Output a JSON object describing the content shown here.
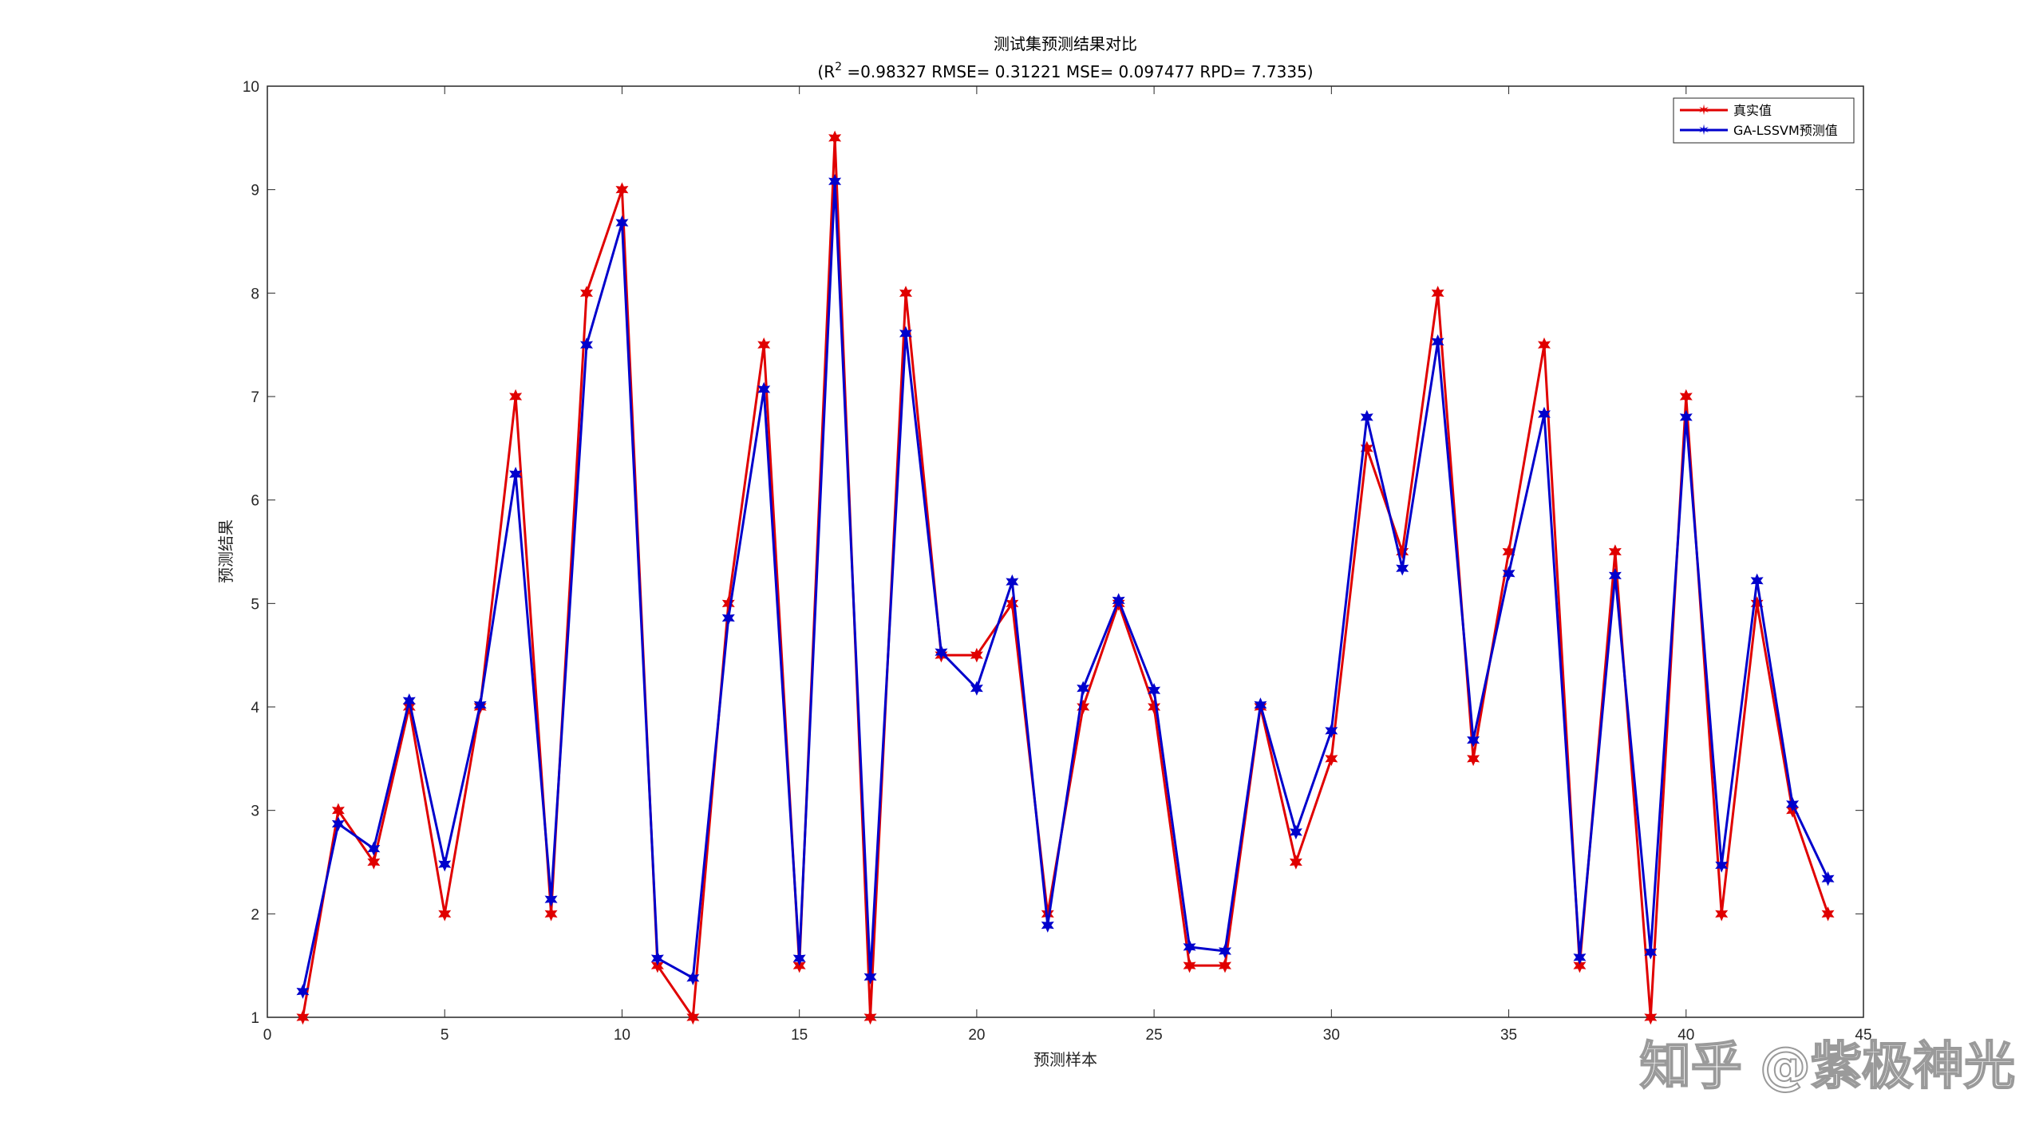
{
  "chart_data": {
    "type": "line",
    "title": "测试集预测结果对比",
    "subtitle_prefix": "(R",
    "subtitle_sup": "2",
    "subtitle_rest": " =0.98327 RMSE= 0.31221 MSE= 0.097477 RPD= 7.7335)",
    "xlabel": "预测样本",
    "ylabel": "预测结果",
    "xlim": [
      0,
      45
    ],
    "ylim": [
      1,
      10
    ],
    "xticks": [
      0,
      5,
      10,
      15,
      20,
      25,
      30,
      35,
      40,
      45
    ],
    "xtick_labels": [
      "0",
      "5",
      "10",
      "15",
      "20",
      "25",
      "30",
      "35",
      "40",
      "45"
    ],
    "yticks": [
      1,
      2,
      3,
      4,
      5,
      6,
      7,
      8,
      9,
      10
    ],
    "ytick_labels": [
      "1",
      "2",
      "3",
      "4",
      "5",
      "6",
      "7",
      "8",
      "9",
      "10"
    ],
    "x": [
      1,
      2,
      3,
      4,
      5,
      6,
      7,
      8,
      9,
      10,
      11,
      12,
      13,
      14,
      15,
      16,
      17,
      18,
      19,
      20,
      21,
      22,
      23,
      24,
      25,
      26,
      27,
      28,
      29,
      30,
      31,
      32,
      33,
      34,
      35,
      36,
      37,
      38,
      39,
      40,
      41,
      42,
      43,
      44
    ],
    "series": [
      {
        "name": "真实值",
        "color": "#e00000",
        "values": [
          1,
          3,
          2.5,
          4,
          2,
          4,
          7,
          2,
          8,
          9,
          1.5,
          1,
          5,
          7.5,
          1.5,
          9.5,
          1,
          8,
          4.5,
          4.5,
          5,
          2,
          4,
          5,
          4,
          1.5,
          1.5,
          4,
          2.5,
          3.5,
          6.5,
          5.5,
          8,
          3.5,
          5.5,
          7.5,
          1.5,
          5.5,
          1,
          7,
          2,
          5,
          3,
          2
        ]
      },
      {
        "name": "GA-LSSVM预测值",
        "color": "#0000cc",
        "values": [
          1.25,
          2.87,
          2.63,
          4.06,
          2.48,
          4.02,
          6.25,
          2.14,
          7.5,
          8.68,
          1.57,
          1.38,
          4.86,
          7.07,
          1.57,
          9.08,
          1.39,
          7.61,
          4.53,
          4.18,
          5.21,
          1.89,
          4.18,
          5.03,
          4.16,
          1.68,
          1.64,
          4.02,
          2.79,
          3.77,
          6.8,
          5.34,
          7.53,
          3.68,
          5.29,
          6.83,
          1.58,
          5.27,
          1.63,
          6.8,
          2.47,
          5.22,
          3.06,
          2.34
        ]
      }
    ],
    "legend_position": "top-right",
    "grid": false
  },
  "watermark": "知乎 @紫极神光"
}
